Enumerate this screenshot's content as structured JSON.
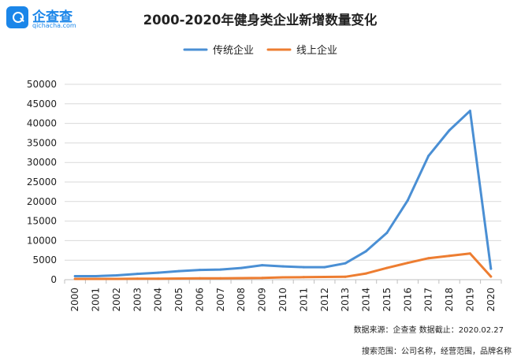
{
  "logo": {
    "name": "企查查",
    "domain": "qichacha.com"
  },
  "chart_data": {
    "type": "line",
    "title": "2000-2020年健身类企业新增数量变化",
    "categories": [
      "2000",
      "2001",
      "2002",
      "2003",
      "2004",
      "2005",
      "2006",
      "2007",
      "2008",
      "2009",
      "2010",
      "2011",
      "2012",
      "2013",
      "2014",
      "2015",
      "2016",
      "2017",
      "2018",
      "2019",
      "2020"
    ],
    "series": [
      {
        "name": "传统企业",
        "color": "#4a8fd4",
        "values": [
          900,
          900,
          1100,
          1500,
          1800,
          2200,
          2500,
          2600,
          3000,
          3700,
          3400,
          3200,
          3200,
          4200,
          7300,
          12000,
          20300,
          31700,
          38200,
          43200,
          2800
        ]
      },
      {
        "name": "线上企业",
        "color": "#ed7d31",
        "values": [
          200,
          200,
          200,
          250,
          250,
          300,
          350,
          350,
          400,
          450,
          600,
          650,
          700,
          750,
          1600,
          3000,
          4300,
          5500,
          6100,
          6700,
          800
        ]
      }
    ],
    "yticks": [
      0,
      5000,
      10000,
      15000,
      20000,
      25000,
      30000,
      35000,
      40000,
      45000,
      50000
    ],
    "ylim": [
      0,
      50000
    ],
    "grid": true,
    "legend": "top-center"
  },
  "footer": {
    "source": "数据来源：企查查  数据截止：2020.02.27",
    "scope": "搜索范围：公司名称，经营范围，品牌名称"
  }
}
